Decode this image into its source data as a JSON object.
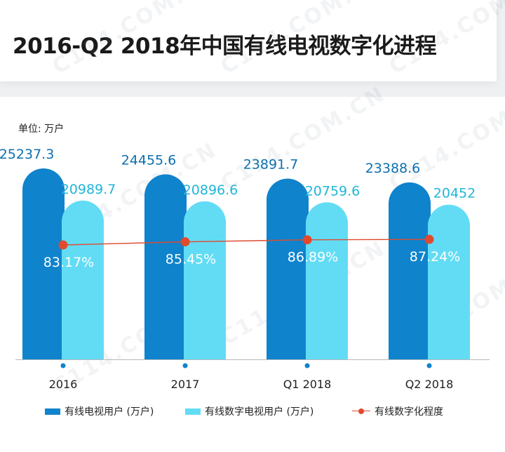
{
  "header": {
    "title": "2016-Q2 2018年中国有线电视数字化进程"
  },
  "unit_label": "单位: 万户",
  "watermark": "C114.COM.CN",
  "colors": {
    "series1": "#0f83cc",
    "series2": "#62dcf5",
    "line": "#e04a2e",
    "label1": "#0d6fae",
    "label2": "#1fb6d8"
  },
  "legend": {
    "s1": "有线电视用户 (万户)",
    "s2": "有线数字电视用户 (万户)",
    "line": "有线数字化程度"
  },
  "chart_data": {
    "type": "bar",
    "title": "2016-Q2 2018年中国有线电视数字化进程",
    "ylabel": "单位: 万户",
    "categories": [
      "2016",
      "2017",
      "Q1 2018",
      "Q2 2018"
    ],
    "series": [
      {
        "name": "有线电视用户 (万户)",
        "type": "bar",
        "values": [
          25237.3,
          24455.6,
          23891.7,
          23388.6
        ],
        "labels": [
          "25237.3",
          "24455.6",
          "23891.7",
          "23388.6"
        ]
      },
      {
        "name": "有线数字电视用户 (万户)",
        "type": "bar",
        "values": [
          20989.7,
          20896.6,
          20759.6,
          20452
        ],
        "labels": [
          "20989.7",
          "20896.6",
          "20759.6",
          "20452"
        ]
      },
      {
        "name": "有线数字化程度",
        "type": "line",
        "values": [
          83.17,
          85.45,
          86.89,
          87.24
        ],
        "labels": [
          "83.17%",
          "85.45%",
          "86.89%",
          "87.24%"
        ]
      }
    ]
  }
}
